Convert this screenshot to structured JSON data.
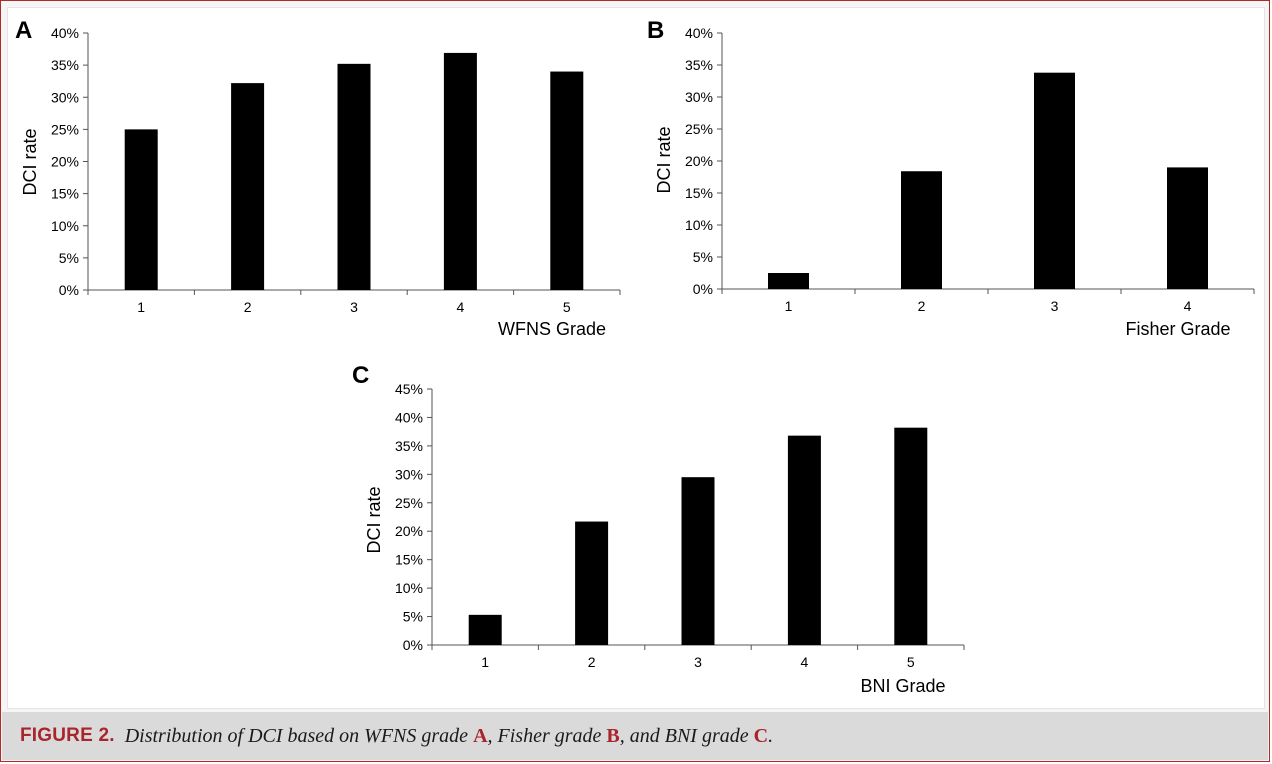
{
  "chart_data": [
    {
      "type": "bar",
      "panel_label": "A",
      "categories": [
        "1",
        "2",
        "3",
        "4",
        "5"
      ],
      "values": [
        25.0,
        32.2,
        35.2,
        36.9,
        34.0
      ],
      "xlabel": "WFNS Grade",
      "ylabel": "DCI rate",
      "ylim": [
        0,
        40
      ],
      "yticks": [
        "0%",
        "5%",
        "10%",
        "15%",
        "20%",
        "25%",
        "30%",
        "35%",
        "40%"
      ],
      "bar_color": "#000000"
    },
    {
      "type": "bar",
      "panel_label": "B",
      "categories": [
        "1",
        "2",
        "3",
        "4"
      ],
      "values": [
        2.5,
        18.4,
        33.8,
        19.0
      ],
      "xlabel": "Fisher Grade",
      "ylabel": "DCI rate",
      "ylim": [
        0,
        40
      ],
      "yticks": [
        "0%",
        "5%",
        "10%",
        "15%",
        "20%",
        "25%",
        "30%",
        "35%",
        "40%"
      ],
      "bar_color": "#000000"
    },
    {
      "type": "bar",
      "panel_label": "C",
      "categories": [
        "1",
        "2",
        "3",
        "4",
        "5"
      ],
      "values": [
        5.3,
        21.7,
        29.5,
        36.8,
        38.2
      ],
      "xlabel": "BNI Grade",
      "ylabel": "DCI rate",
      "ylim": [
        0,
        45
      ],
      "yticks": [
        "0%",
        "5%",
        "10%",
        "15%",
        "20%",
        "25%",
        "30%",
        "35%",
        "40%",
        "45%"
      ],
      "bar_color": "#000000"
    }
  ],
  "caption": {
    "label": "FIGURE 2.",
    "text_1": "Distribution of DCI based on WFNS grade ",
    "ref_a": "A",
    "text_2": ", Fisher grade ",
    "ref_b": "B",
    "text_3": ", and BNI grade ",
    "ref_c": "C",
    "text_4": "."
  },
  "colors": {
    "border": "#b02a2a",
    "caption_label": "#a8262b",
    "caption_bg": "#dadada"
  }
}
